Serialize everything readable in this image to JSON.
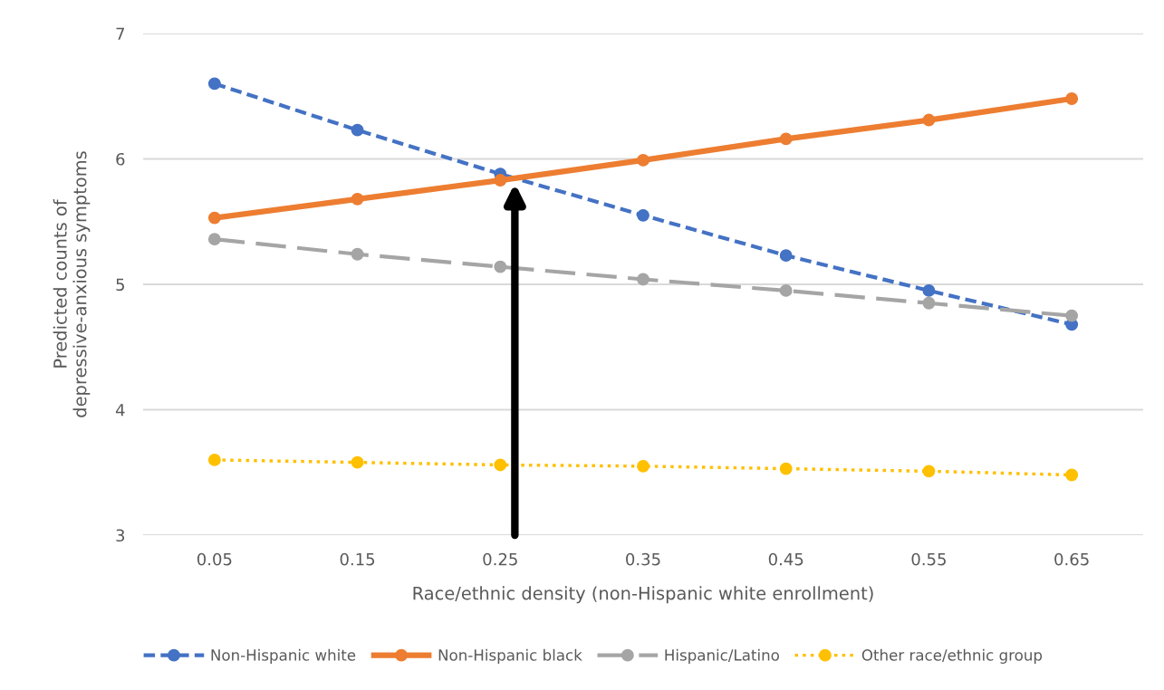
{
  "chart_data": {
    "type": "line",
    "xlabel": "Race/ethnic density (non-Hispanic white enrollment)",
    "ylabel": "Predicted counts of\ndepressive-anxious symptoms",
    "x": [
      0.05,
      0.15,
      0.25,
      0.35,
      0.45,
      0.55,
      0.65
    ],
    "xlim": [
      0,
      0.7
    ],
    "xticks": [
      0.05,
      0.15,
      0.25,
      0.35,
      0.45,
      0.55,
      0.65
    ],
    "ylim": [
      3,
      7
    ],
    "yticks": [
      3,
      4,
      5,
      6,
      7
    ],
    "grid": "y",
    "legend": "bottom",
    "marker": "circle",
    "series": [
      {
        "name": "Non-Hispanic white",
        "color": "#4472c4",
        "line_style": "dashed",
        "values": [
          6.6,
          6.23,
          5.88,
          5.55,
          5.23,
          4.95,
          4.68
        ]
      },
      {
        "name": "Non-Hispanic black",
        "color": "#ed7d31",
        "line_style": "solid",
        "values": [
          5.53,
          5.68,
          5.83,
          5.99,
          6.16,
          6.31,
          6.48
        ]
      },
      {
        "name": "Hispanic/Latino",
        "color": "#a5a5a5",
        "line_style": "dashed",
        "values": [
          5.36,
          5.24,
          5.14,
          5.04,
          4.95,
          4.85,
          4.75
        ]
      },
      {
        "name": "Other race/ethnic group",
        "color": "#ffc000",
        "line_style": "dotted",
        "values": [
          3.6,
          3.58,
          3.56,
          3.55,
          3.53,
          3.51,
          3.48
        ]
      }
    ]
  }
}
